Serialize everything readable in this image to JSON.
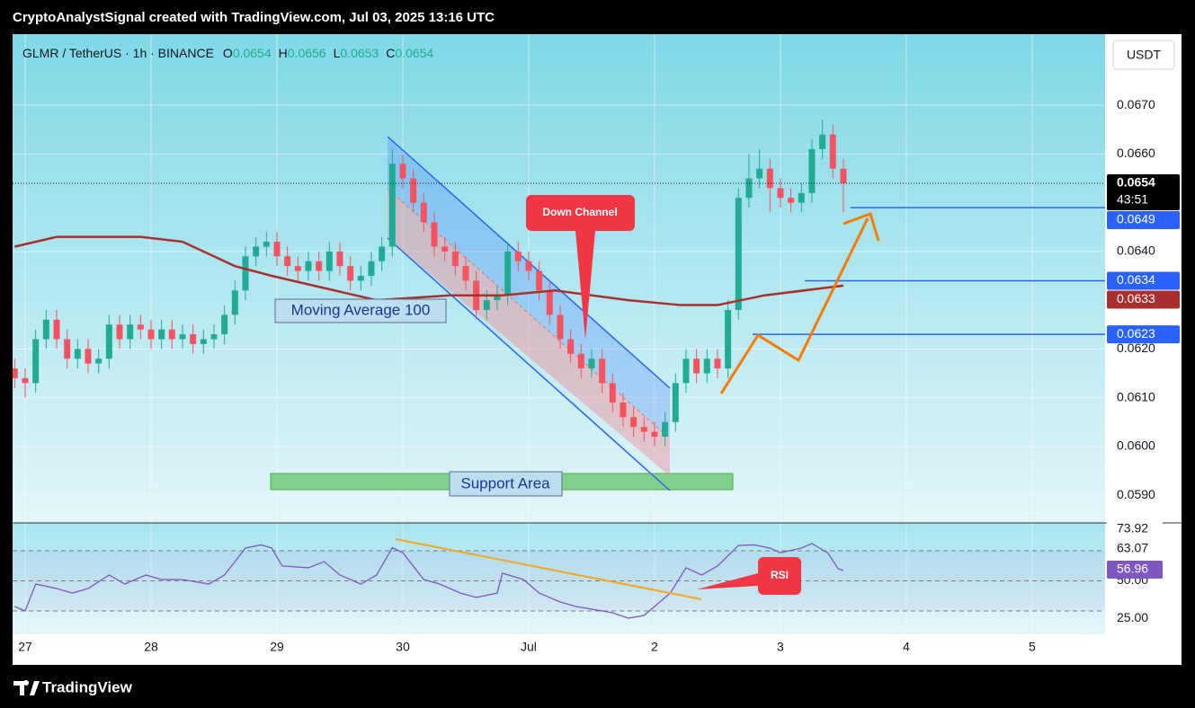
{
  "header": {
    "title": "CryptoAnalystSignal created with TradingView.com, Jul 03, 2025 13:16 UTC"
  },
  "chart_data": [
    {
      "type": "candlestick",
      "symbol": "GLMR / TetherUS · 1h · BINANCE",
      "ohlc_legend": [
        {
          "key": "O",
          "value": 0.0654
        },
        {
          "key": "H",
          "value": 0.0656
        },
        {
          "key": "L",
          "value": 0.0653
        },
        {
          "key": "C",
          "value": 0.0654
        }
      ],
      "currency": "USDT",
      "up_color": "#22ab94",
      "down_color": "#f7525f",
      "x": [
        -2,
        0,
        2,
        4,
        6,
        8,
        10,
        12,
        14,
        16,
        18,
        20,
        22,
        24,
        26,
        28,
        30,
        32,
        34,
        36,
        38,
        40,
        42,
        44,
        46,
        48,
        50,
        52,
        54,
        56,
        58,
        60,
        62,
        64,
        66,
        68,
        70,
        72,
        74,
        76,
        78,
        80,
        82,
        84,
        86,
        88,
        90,
        92,
        94,
        96,
        98,
        100,
        102,
        104,
        106,
        108,
        110,
        112,
        114,
        116,
        118,
        120,
        122,
        124,
        126,
        128,
        130,
        132,
        134,
        136,
        138,
        140,
        142,
        144,
        146,
        148,
        150,
        152,
        154,
        156
      ],
      "open": [
        0.0616,
        0.0614,
        0.0613,
        0.0622,
        0.0626,
        0.0622,
        0.0618,
        0.062,
        0.0617,
        0.0618,
        0.0625,
        0.0622,
        0.0625,
        0.0624,
        0.0622,
        0.0624,
        0.0622,
        0.0623,
        0.0621,
        0.0622,
        0.0623,
        0.0627,
        0.0632,
        0.0639,
        0.0641,
        0.0642,
        0.0639,
        0.0637,
        0.0636,
        0.0638,
        0.0636,
        0.064,
        0.0637,
        0.0634,
        0.0635,
        0.0638,
        0.0641,
        0.0658,
        0.0655,
        0.065,
        0.0646,
        0.0641,
        0.064,
        0.0637,
        0.0634,
        0.0628,
        0.063,
        0.0631,
        0.064,
        0.0638,
        0.0636,
        0.0632,
        0.0627,
        0.0622,
        0.0619,
        0.0616,
        0.0618,
        0.0613,
        0.0609,
        0.0606,
        0.0604,
        0.0603,
        0.0602,
        0.0605,
        0.0613,
        0.0618,
        0.0615,
        0.0618,
        0.0616,
        0.0628,
        0.0651,
        0.0655,
        0.0657,
        0.0653,
        0.0651,
        0.065,
        0.0652,
        0.0661,
        0.0664,
        0.0657
      ],
      "high": [
        0.0618,
        0.0616,
        0.0624,
        0.0628,
        0.0628,
        0.0624,
        0.0622,
        0.0622,
        0.062,
        0.0627,
        0.0627,
        0.0627,
        0.0627,
        0.0626,
        0.0626,
        0.0626,
        0.0625,
        0.0625,
        0.0624,
        0.0625,
        0.0629,
        0.0634,
        0.0641,
        0.0643,
        0.0644,
        0.0644,
        0.0641,
        0.0639,
        0.064,
        0.064,
        0.0642,
        0.0642,
        0.0639,
        0.0637,
        0.064,
        0.0643,
        0.0661,
        0.066,
        0.0657,
        0.0652,
        0.0648,
        0.0643,
        0.0642,
        0.0639,
        0.0636,
        0.0632,
        0.0633,
        0.0642,
        0.0642,
        0.064,
        0.0638,
        0.0634,
        0.0629,
        0.0624,
        0.0621,
        0.062,
        0.062,
        0.0615,
        0.0611,
        0.0608,
        0.0606,
        0.0605,
        0.0607,
        0.0615,
        0.062,
        0.062,
        0.062,
        0.062,
        0.063,
        0.0653,
        0.066,
        0.0661,
        0.0659,
        0.0655,
        0.0653,
        0.0654,
        0.0663,
        0.0667,
        0.0666,
        0.0659
      ],
      "low": [
        0.0612,
        0.061,
        0.0611,
        0.062,
        0.062,
        0.0616,
        0.0616,
        0.0615,
        0.0615,
        0.0616,
        0.062,
        0.062,
        0.0622,
        0.062,
        0.062,
        0.062,
        0.062,
        0.0619,
        0.0619,
        0.062,
        0.0621,
        0.0625,
        0.063,
        0.0637,
        0.0639,
        0.0637,
        0.0635,
        0.0634,
        0.0634,
        0.0634,
        0.0634,
        0.0635,
        0.0632,
        0.0632,
        0.0633,
        0.0636,
        0.0639,
        0.0653,
        0.0648,
        0.0644,
        0.0639,
        0.0638,
        0.0635,
        0.0632,
        0.0626,
        0.0626,
        0.0628,
        0.0629,
        0.0636,
        0.0634,
        0.063,
        0.0625,
        0.062,
        0.0617,
        0.0614,
        0.0614,
        0.0611,
        0.0607,
        0.0604,
        0.0602,
        0.0601,
        0.06,
        0.06,
        0.0603,
        0.0611,
        0.0613,
        0.0613,
        0.0614,
        0.0614,
        0.0626,
        0.0649,
        0.0653,
        0.0648,
        0.0649,
        0.0648,
        0.0648,
        0.065,
        0.0659,
        0.0655,
        0.0648
      ],
      "close": [
        0.0614,
        0.0613,
        0.0622,
        0.0626,
        0.0622,
        0.0618,
        0.062,
        0.0617,
        0.0618,
        0.0625,
        0.0622,
        0.0625,
        0.0624,
        0.0622,
        0.0624,
        0.0622,
        0.0623,
        0.0621,
        0.0622,
        0.0623,
        0.0627,
        0.0632,
        0.0639,
        0.0641,
        0.0642,
        0.0639,
        0.0637,
        0.0636,
        0.0638,
        0.0636,
        0.064,
        0.0637,
        0.0634,
        0.0635,
        0.0638,
        0.0641,
        0.0658,
        0.0655,
        0.065,
        0.0646,
        0.0641,
        0.064,
        0.0637,
        0.0634,
        0.0628,
        0.063,
        0.0631,
        0.064,
        0.0638,
        0.0636,
        0.0632,
        0.0627,
        0.0622,
        0.0619,
        0.0616,
        0.0618,
        0.0613,
        0.0609,
        0.0606,
        0.0604,
        0.0603,
        0.0602,
        0.0605,
        0.0613,
        0.0618,
        0.0615,
        0.0618,
        0.0616,
        0.0628,
        0.0651,
        0.0655,
        0.0657,
        0.0653,
        0.0651,
        0.065,
        0.0652,
        0.0661,
        0.0664,
        0.0657,
        0.0654
      ],
      "series": [
        {
          "name": "Moving Average 100",
          "color": "#a8302e",
          "x": [
            -2,
            6,
            22,
            30,
            40,
            47,
            55,
            67,
            81,
            91,
            101,
            115,
            125,
            132,
            141,
            156
          ],
          "values": [
            0.0641,
            0.0643,
            0.0643,
            0.0642,
            0.0637,
            0.0635,
            0.0633,
            0.063,
            0.0631,
            0.0631,
            0.0632,
            0.063,
            0.0629,
            0.0629,
            0.0631,
            0.0633
          ]
        }
      ],
      "xlim": [
        -2.4,
        205.9
      ],
      "xticks": [
        {
          "value": 0,
          "label": "27"
        },
        {
          "value": 24,
          "label": "28"
        },
        {
          "value": 48,
          "label": "29"
        },
        {
          "value": 72,
          "label": "30"
        },
        {
          "value": 96,
          "label": "Jul"
        },
        {
          "value": 120,
          "label": "2"
        },
        {
          "value": 144,
          "label": "3"
        },
        {
          "value": 168,
          "label": "4"
        },
        {
          "value": 192,
          "label": "5"
        }
      ],
      "ylim": [
        0.05843,
        0.06846
      ],
      "yticks": [
        {
          "value": 0.067,
          "label": "0.0670"
        },
        {
          "value": 0.066,
          "label": "0.0660"
        },
        {
          "value": 0.064,
          "label": "0.0640"
        },
        {
          "value": 0.062,
          "label": "0.0620"
        },
        {
          "value": 0.061,
          "label": "0.0610"
        },
        {
          "value": 0.06,
          "label": "0.0600"
        },
        {
          "value": 0.059,
          "label": "0.0590"
        }
      ],
      "grid": true,
      "price_tags": [
        {
          "value": 0.0654,
          "countdown": "43:51",
          "color": "#000000",
          "kind": "last"
        },
        {
          "value": 0.0649,
          "color": "#2962ff",
          "kind": "level"
        },
        {
          "value": 0.0634,
          "color": "#2962ff",
          "kind": "level"
        },
        {
          "value": 0.0633,
          "color": "#a8302e",
          "kind": "ma"
        },
        {
          "value": 0.0623,
          "color": "#2962ff",
          "kind": "level"
        }
      ],
      "annotations": [
        "Down Channel",
        "Support Area"
      ]
    },
    {
      "type": "line",
      "series": [
        {
          "name": "RSI",
          "color": "#7e57c2",
          "x": [
            -2,
            0,
            2,
            6,
            9,
            12,
            16,
            19,
            23,
            26,
            30,
            35,
            38,
            42,
            45,
            47,
            49,
            54,
            57,
            60,
            64,
            67,
            70,
            72,
            76,
            79,
            83,
            86,
            90,
            91,
            95,
            98,
            102,
            105,
            108,
            112,
            115,
            118,
            120,
            123,
            126,
            129,
            132,
            136,
            139,
            142,
            144,
            148,
            150,
            153,
            155,
            156
          ],
          "values": [
            33,
            30,
            47.9,
            44.9,
            41.9,
            44.9,
            53.9,
            47.9,
            53.9,
            50.9,
            50.9,
            47.9,
            53.9,
            71.8,
            73.9,
            71.8,
            59.9,
            58.7,
            62.8,
            53.9,
            47.9,
            53.9,
            72,
            68.7,
            50.9,
            47.9,
            41.9,
            39,
            41.9,
            55.1,
            50.9,
            41.9,
            36,
            33,
            31.2,
            28.8,
            25.2,
            27,
            33,
            41.9,
            58.7,
            53.9,
            59.9,
            73.5,
            73.92,
            71.8,
            68.7,
            71.8,
            74.8,
            68.7,
            58.1,
            56.96
          ]
        }
      ],
      "ylim": [
        14.5,
        88.5
      ],
      "yticks": [
        {
          "value": 50,
          "label": "50.00"
        },
        {
          "value": 25,
          "label": "25.00"
        }
      ],
      "levels": [
        70,
        50,
        30
      ],
      "value_tags": [
        {
          "value": 73.92,
          "color": "#ffffff"
        },
        {
          "value": 63.07,
          "color": "#ffffff"
        },
        {
          "value": 56.96,
          "color": "#7e57c2"
        }
      ]
    }
  ],
  "footer": {
    "brand": "TradingView"
  }
}
